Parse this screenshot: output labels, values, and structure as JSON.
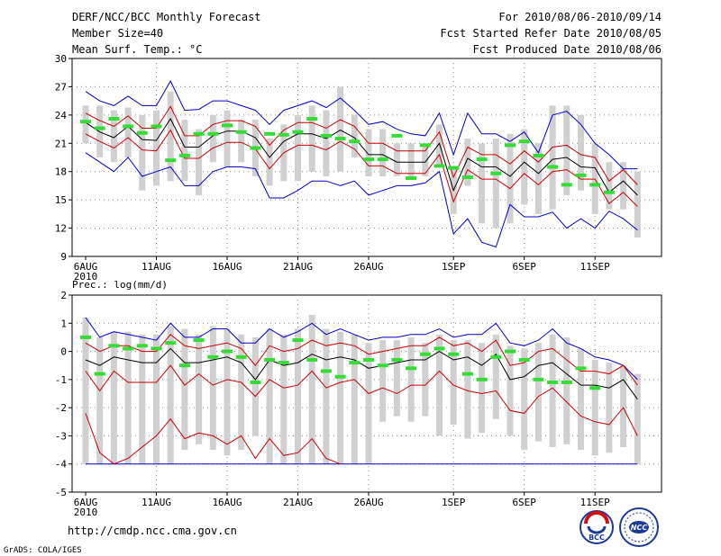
{
  "header": {
    "title": "DERF/NCC/BCC Monthly Forecast",
    "member_size": "Member Size=40",
    "variable1": "Mean Surf. Temp.: °C",
    "period": "For 2010/08/06-2010/09/14",
    "fcst_started": "Fcst Started Refer Date 2010/08/05",
    "fcst_produced": "Fcst Produced Date 2010/08/06"
  },
  "footer": {
    "url": "http://cmdp.ncc.cma.gov.cn",
    "grads": "GrADS: COLA/IGES",
    "logo_bcc": "BCC",
    "logo_ncc": "NCC"
  },
  "colors": {
    "box": "#d0d0d0",
    "mean": "#000000",
    "inner": "#cc0000",
    "outer": "#0000cc",
    "obs": "#33dd33"
  },
  "chart_data": [
    {
      "type": "line",
      "title": "Mean Surf. Temp.: °C",
      "xlabel": "",
      "ylabel": "",
      "ylim": [
        9,
        30
      ],
      "yticks": [
        "9",
        "12",
        "15",
        "18",
        "21",
        "24",
        "27",
        "30"
      ],
      "xticks": [
        "6AUG",
        "11AUG",
        "16AUG",
        "21AUG",
        "26AUG",
        "1SEP",
        "6SEP",
        "11SEP"
      ],
      "xyear": "2010",
      "days": 40,
      "series": [
        {
          "name": "mean",
          "values": [
            23.2,
            22.2,
            21.6,
            22.8,
            21.4,
            21.3,
            23.6,
            20.6,
            20.6,
            21.8,
            22.3,
            22.3,
            21.6,
            19.5,
            21.2,
            22.0,
            22.0,
            21.5,
            22.4,
            21.6,
            19.8,
            19.8,
            19.0,
            19.0,
            19.0,
            21.0,
            16.0,
            19.4,
            18.5,
            18.5,
            17.5,
            19.0,
            17.8,
            19.3,
            19.5,
            18.5,
            18.4,
            15.8,
            17.0,
            15.5
          ]
        },
        {
          "name": "upper_inner",
          "values": [
            24.2,
            23.4,
            22.8,
            23.9,
            22.6,
            22.6,
            24.9,
            21.8,
            21.8,
            23.0,
            23.4,
            23.4,
            22.8,
            20.8,
            22.4,
            23.2,
            23.2,
            22.6,
            23.5,
            22.8,
            21.0,
            21.0,
            20.2,
            20.2,
            20.2,
            22.2,
            17.4,
            20.6,
            19.8,
            19.8,
            18.8,
            20.2,
            19.0,
            20.6,
            20.8,
            19.8,
            19.5,
            17.0,
            18.2,
            16.6
          ]
        },
        {
          "name": "lower_inner",
          "values": [
            22.0,
            21.2,
            20.5,
            21.6,
            20.3,
            20.2,
            22.4,
            19.4,
            19.4,
            20.5,
            21.1,
            21.1,
            20.4,
            18.3,
            20.0,
            20.8,
            20.8,
            20.3,
            21.2,
            20.4,
            18.6,
            18.6,
            17.8,
            17.8,
            17.8,
            19.8,
            14.8,
            18.2,
            17.2,
            17.2,
            16.2,
            17.8,
            16.6,
            18.0,
            18.2,
            17.2,
            17.2,
            14.6,
            15.8,
            14.3
          ]
        },
        {
          "name": "upper_outer",
          "values": [
            26.5,
            25.5,
            25.0,
            26.0,
            25.0,
            25.0,
            27.6,
            24.5,
            24.6,
            25.5,
            25.5,
            25.0,
            24.5,
            23.0,
            24.5,
            25.0,
            25.5,
            24.8,
            25.8,
            24.5,
            23.0,
            23.3,
            22.5,
            22.0,
            21.8,
            24.2,
            19.8,
            24.2,
            22.0,
            22.0,
            21.2,
            22.2,
            20.0,
            24.0,
            24.4,
            23.0,
            21.0,
            19.8,
            18.3,
            18.3
          ]
        },
        {
          "name": "lower_outer",
          "values": [
            20.0,
            19.0,
            18.0,
            19.5,
            17.5,
            18.0,
            18.5,
            16.5,
            16.5,
            18.0,
            18.5,
            18.5,
            18.3,
            15.2,
            15.2,
            16.0,
            17.0,
            17.0,
            16.5,
            17.0,
            15.5,
            16.0,
            16.5,
            16.5,
            16.8,
            18.0,
            11.4,
            13.0,
            10.5,
            10.0,
            14.5,
            13.2,
            13.2,
            13.7,
            12.0,
            13.0,
            12.0,
            13.8,
            13.0,
            11.8
          ]
        },
        {
          "name": "box_top",
          "values": [
            25.0,
            25.0,
            24.5,
            24.8,
            24.0,
            24.5,
            26.5,
            23.5,
            22.5,
            24.0,
            24.5,
            23.5,
            23.5,
            21.5,
            23.0,
            24.0,
            25.0,
            24.5,
            27.0,
            24.0,
            22.5,
            22.5,
            21.0,
            21.0,
            21.0,
            23.0,
            18.5,
            21.5,
            21.0,
            21.5,
            22.0,
            22.5,
            21.0,
            25.0,
            25.0,
            24.0,
            21.0,
            19.0,
            19.0,
            18.0
          ]
        },
        {
          "name": "box_bottom",
          "values": [
            21.0,
            19.5,
            19.0,
            19.5,
            16.0,
            16.5,
            17.0,
            17.0,
            15.5,
            19.0,
            18.5,
            19.0,
            17.5,
            16.5,
            17.0,
            17.0,
            18.0,
            17.5,
            18.0,
            19.5,
            17.5,
            17.5,
            17.5,
            17.5,
            17.5,
            18.5,
            13.5,
            16.5,
            12.5,
            12.0,
            12.5,
            14.5,
            13.5,
            14.0,
            15.5,
            16.0,
            13.5,
            14.0,
            14.0,
            11.0
          ]
        },
        {
          "name": "observed",
          "values": [
            23.3,
            22.6,
            23.6,
            22.8,
            22.1,
            22.8,
            19.2,
            19.7,
            22.0,
            22.0,
            22.9,
            22.2,
            20.5,
            22.0,
            21.9,
            22.2,
            23.6,
            21.8,
            21.5,
            21.2,
            19.3,
            19.3,
            21.8,
            17.3,
            20.8,
            18.6,
            18.4,
            17.4,
            19.3,
            17.8,
            20.8,
            21.2,
            19.7,
            18.5,
            16.6,
            17.6,
            16.6,
            15.8,
            null,
            null
          ]
        }
      ]
    },
    {
      "type": "line",
      "title": "Prec.: log(mm/d)",
      "xlabel": "",
      "ylabel": "",
      "ylim": [
        -5,
        2
      ],
      "yticks": [
        "-5",
        "-4",
        "-3",
        "-2",
        "-1",
        "0",
        "1",
        "2"
      ],
      "xticks": [
        "6AUG",
        "11AUG",
        "16AUG",
        "21AUG",
        "26AUG",
        "1SEP",
        "6SEP",
        "11SEP"
      ],
      "xyear": "2010",
      "days": 40,
      "series": [
        {
          "name": "mean",
          "values": [
            -0.3,
            -0.5,
            -0.2,
            -0.3,
            -0.4,
            -0.4,
            0.1,
            -0.4,
            -0.4,
            -0.3,
            -0.2,
            -0.4,
            -1.0,
            -0.3,
            -0.5,
            -0.4,
            -0.1,
            -0.3,
            -0.2,
            -0.3,
            -0.6,
            -0.5,
            -0.4,
            -0.3,
            -0.3,
            0.0,
            -0.3,
            -0.2,
            -0.5,
            -0.1,
            -1.0,
            -0.9,
            -0.5,
            -0.4,
            -0.8,
            -1.2,
            -1.2,
            -1.3,
            -1.0,
            -1.7
          ]
        },
        {
          "name": "upper_inner",
          "values": [
            0.3,
            0.0,
            0.2,
            0.2,
            0.0,
            0.0,
            0.6,
            0.2,
            0.1,
            0.2,
            0.3,
            0.1,
            -0.5,
            0.2,
            0.0,
            0.1,
            0.4,
            0.2,
            0.3,
            0.2,
            -0.1,
            0.0,
            0.1,
            0.2,
            0.2,
            0.5,
            0.2,
            0.3,
            0.0,
            0.4,
            -0.5,
            -0.4,
            0.0,
            0.1,
            -0.3,
            -0.7,
            -0.7,
            -0.8,
            -0.5,
            -1.2
          ]
        },
        {
          "name": "lower_inner",
          "values": [
            -0.7,
            -1.4,
            -0.7,
            -1.1,
            -1.1,
            -1.1,
            -0.5,
            -1.2,
            -0.8,
            -1.2,
            -1.0,
            -1.1,
            -1.6,
            -1.0,
            -1.3,
            -1.2,
            -0.7,
            -1.3,
            -1.1,
            -1.0,
            -1.5,
            -1.3,
            -1.5,
            -1.2,
            -1.2,
            -0.7,
            -1.2,
            -1.4,
            -1.5,
            -1.4,
            -2.1,
            -2.2,
            -1.6,
            -1.3,
            -1.8,
            -2.3,
            -2.5,
            -2.6,
            -2.0,
            -3.0
          ]
        },
        {
          "name": "upper_outer",
          "values": [
            1.2,
            0.5,
            0.7,
            0.6,
            0.5,
            0.4,
            1.0,
            0.5,
            0.5,
            0.8,
            0.8,
            0.3,
            0.3,
            0.8,
            0.5,
            0.7,
            1.0,
            0.6,
            0.8,
            0.6,
            0.4,
            0.5,
            0.5,
            0.6,
            0.6,
            0.8,
            0.5,
            0.6,
            0.6,
            1.0,
            0.3,
            0.2,
            0.4,
            0.8,
            0.3,
            0.1,
            -0.2,
            -0.3,
            -0.5,
            -1.0
          ]
        },
        {
          "name": "lower_outer",
          "values": [
            -2.2,
            -3.6,
            -4.0,
            -3.8,
            -3.4,
            -3.0,
            -2.4,
            -3.1,
            -2.9,
            -3.0,
            -3.3,
            -3.0,
            -3.8,
            -3.1,
            -3.7,
            -3.6,
            -3.1,
            -3.8,
            -4.0,
            null,
            null,
            null,
            null,
            null,
            null,
            null,
            null,
            null,
            null,
            null,
            null,
            null,
            null,
            null,
            null,
            null,
            null,
            null,
            null,
            null
          ]
        },
        {
          "name": "box_top",
          "values": [
            1.2,
            0.5,
            0.7,
            0.7,
            0.6,
            0.6,
            0.9,
            0.8,
            0.6,
            0.9,
            0.8,
            0.6,
            0.5,
            0.8,
            0.6,
            0.8,
            1.3,
            0.8,
            0.7,
            0.6,
            0.3,
            0.4,
            0.4,
            0.5,
            0.3,
            0.6,
            0.4,
            0.4,
            0.3,
            0.6,
            0.2,
            0.1,
            0.3,
            0.6,
            0.5,
            0.1,
            -0.3,
            -0.4,
            -0.5,
            -0.8
          ]
        },
        {
          "name": "box_bottom",
          "values": [
            -4.0,
            -4.0,
            -4.0,
            -4.0,
            -4.0,
            -4.0,
            -4.0,
            -3.5,
            -3.3,
            -3.5,
            -3.7,
            -3.5,
            -3.0,
            -4.0,
            -4.0,
            -4.0,
            -4.0,
            -4.0,
            -4.0,
            -4.0,
            -4.0,
            -2.5,
            -2.3,
            -2.5,
            -2.3,
            -3.0,
            -2.6,
            -3.1,
            -2.9,
            -2.4,
            -3.0,
            -3.5,
            -3.2,
            -3.4,
            -3.3,
            -3.5,
            -3.7,
            -3.6,
            -3.4,
            -4.0
          ]
        },
        {
          "name": "observed",
          "values": [
            0.5,
            -0.8,
            0.2,
            0.1,
            0.2,
            0.1,
            0.3,
            -0.5,
            0.4,
            -0.2,
            0.0,
            -0.2,
            -1.1,
            -0.3,
            -0.4,
            0.4,
            -0.3,
            -0.7,
            -0.9,
            -0.4,
            -0.3,
            -0.5,
            -0.3,
            -0.6,
            -0.1,
            0.1,
            -0.1,
            -0.8,
            -1.0,
            -0.2,
            0.0,
            -0.3,
            -1.0,
            -1.1,
            -1.1,
            -0.6,
            -1.3,
            null,
            null,
            null
          ]
        }
      ]
    }
  ]
}
